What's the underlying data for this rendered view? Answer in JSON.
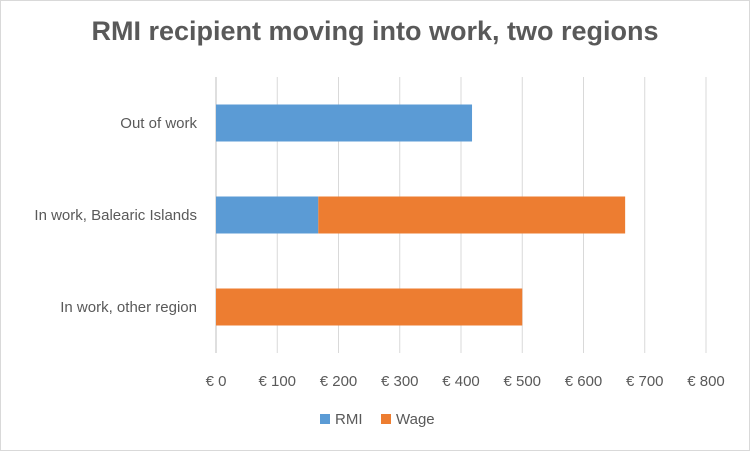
{
  "chart_data": {
    "type": "bar",
    "orientation": "horizontal",
    "stacked": true,
    "title": "RMI recipient moving into work, two regions",
    "categories": [
      "Out of work",
      "In work, Balearic Islands",
      "In work, other region"
    ],
    "series": [
      {
        "name": "RMI",
        "color": "#5b9bd5",
        "values": [
          418,
          167,
          0
        ]
      },
      {
        "name": "Wage",
        "color": "#ed7d31",
        "values": [
          0,
          501,
          500
        ]
      }
    ],
    "xlim": [
      0,
      800
    ],
    "xticks": [
      0,
      100,
      200,
      300,
      400,
      500,
      600,
      700,
      800
    ],
    "xtick_labels": [
      "€ 0",
      "€ 100",
      "€ 200",
      "€ 300",
      "€ 400",
      "€ 500",
      "€ 600",
      "€ 700",
      "€ 800"
    ],
    "grid": "vertical",
    "legend": "bottom"
  }
}
